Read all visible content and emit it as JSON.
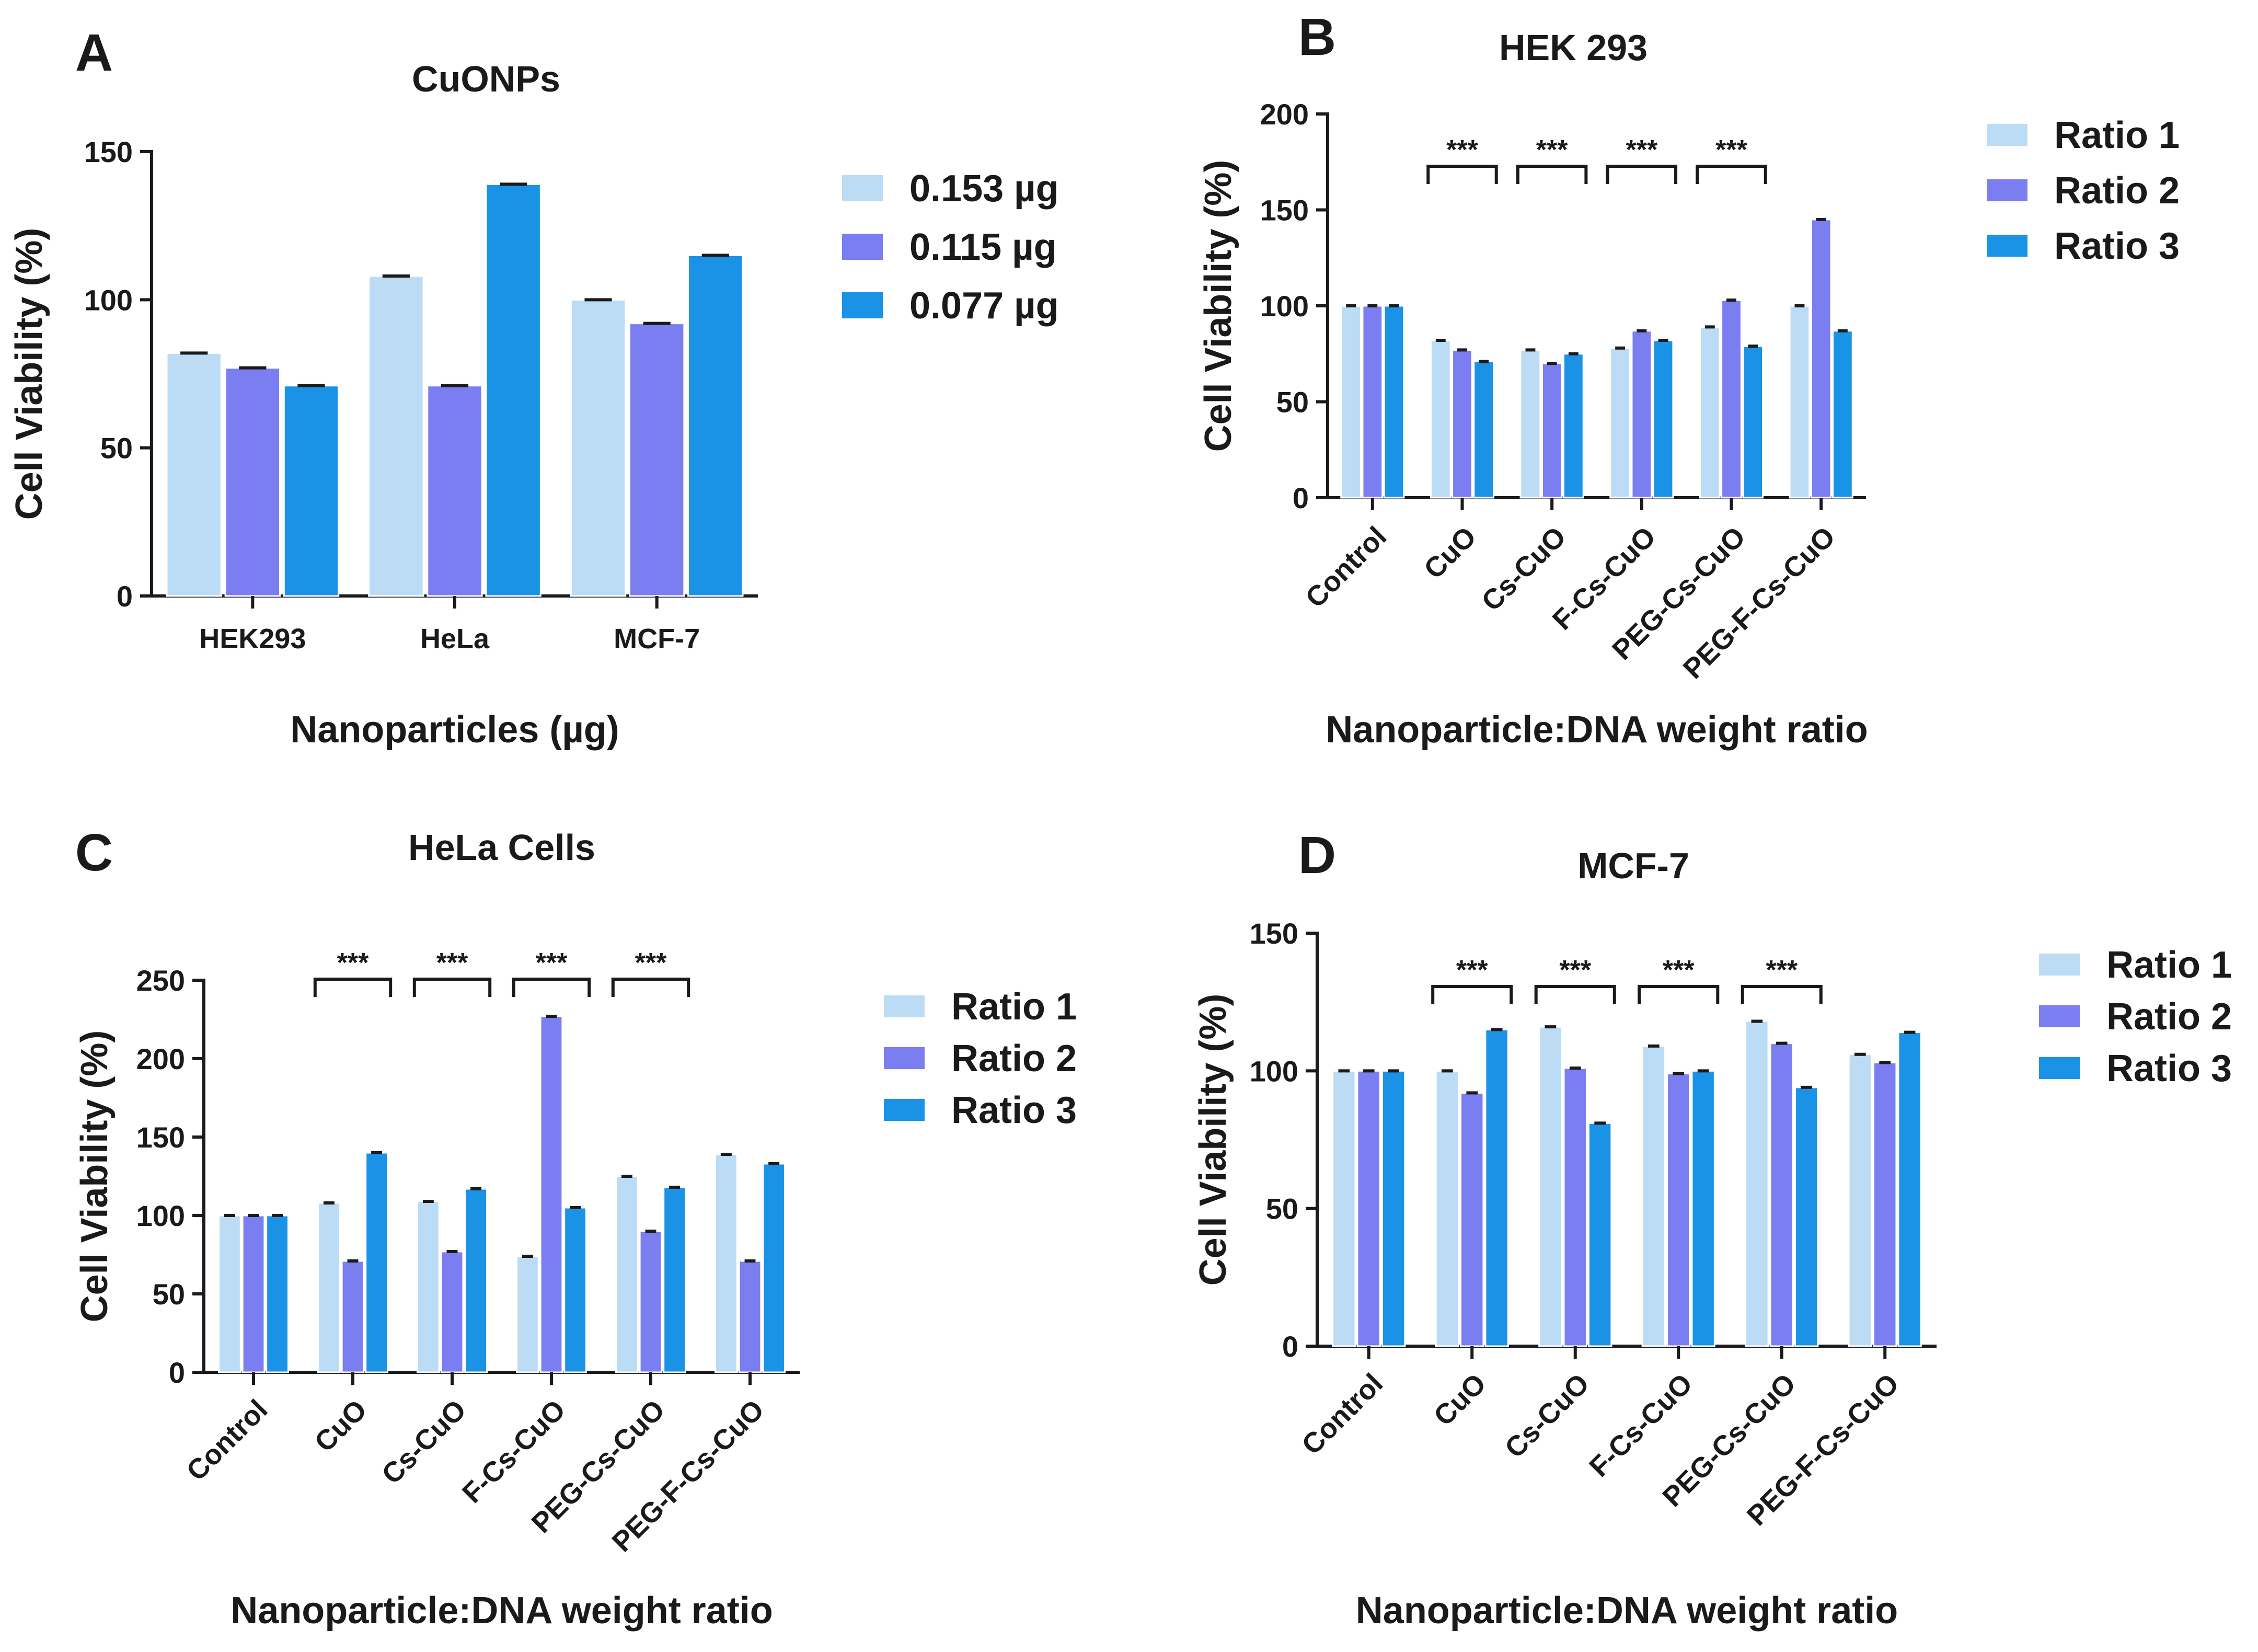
{
  "colors": {
    "series1": "#bcdcf6",
    "series2": "#7b7ef0",
    "series3": "#1a93e6",
    "axis": "#1a1a1a"
  },
  "chart_data": [
    {
      "id": "A",
      "panel": "A",
      "type": "bar",
      "title": "CuONPs",
      "xlabel": "Nanoparticles (µg)",
      "ylabel": "Cell Viability (%)",
      "ylim": [
        0,
        150
      ],
      "yticks": [
        "0",
        "50",
        "100",
        "150"
      ],
      "categories": [
        "HEK293",
        "HeLa",
        "MCF-7"
      ],
      "series": [
        {
          "name": "0.153 µg",
          "values": [
            82,
            108,
            100
          ]
        },
        {
          "name": "0.115 µg",
          "values": [
            77,
            71,
            92
          ]
        },
        {
          "name": "0.077 µg",
          "values": [
            71,
            139,
            115
          ]
        }
      ],
      "significance": []
    },
    {
      "id": "B",
      "panel": "B",
      "type": "bar",
      "title": "HEK 293",
      "xlabel": "Nanoparticle:DNA weight ratio",
      "ylabel": "Cell Viability (%)",
      "ylim": [
        0,
        200
      ],
      "yticks": [
        "0",
        "50",
        "100",
        "150",
        "200"
      ],
      "categories": [
        "Control",
        "CuO",
        "Cs-CuO",
        "F-Cs-CuO",
        "PEG-Cs-CuO",
        "PEG-F-Cs-CuO"
      ],
      "series": [
        {
          "name": "Ratio 1",
          "values": [
            100,
            82,
            77,
            78,
            89,
            100
          ]
        },
        {
          "name": "Ratio 2",
          "values": [
            100,
            77,
            70,
            87,
            103,
            145
          ]
        },
        {
          "name": "Ratio 3",
          "values": [
            100,
            71,
            75,
            82,
            79,
            87
          ]
        }
      ],
      "significance": [
        "***",
        "***",
        "***",
        "***"
      ]
    },
    {
      "id": "C",
      "panel": "C",
      "type": "bar",
      "title": "HeLa Cells",
      "xlabel": "Nanoparticle:DNA weight ratio",
      "ylabel": "Cell Viability (%)",
      "ylim": [
        0,
        250
      ],
      "yticks": [
        "0",
        "50",
        "100",
        "150",
        "200",
        "250"
      ],
      "categories": [
        "Control",
        "CuO",
        "Cs-CuO",
        "F-Cs-CuO",
        "PEG-Cs-CuO",
        "PEG-F-Cs-CuO"
      ],
      "series": [
        {
          "name": "Ratio 1",
          "values": [
            100,
            108,
            109,
            74,
            125,
            139
          ]
        },
        {
          "name": "Ratio 2",
          "values": [
            100,
            71,
            77,
            227,
            90,
            71
          ]
        },
        {
          "name": "Ratio 3",
          "values": [
            100,
            140,
            117,
            105,
            118,
            133
          ]
        }
      ],
      "significance": [
        "***",
        "***",
        "***",
        "***"
      ]
    },
    {
      "id": "D",
      "panel": "D",
      "type": "bar",
      "title": "MCF-7",
      "xlabel": "Nanoparticle:DNA weight ratio",
      "ylabel": "Cell Viability (%)",
      "ylim": [
        0,
        150
      ],
      "yticks": [
        "0",
        "50",
        "100",
        "150"
      ],
      "categories": [
        "Control",
        "CuO",
        "Cs-CuO",
        "F-Cs-CuO",
        "PEG-Cs-CuO",
        "PEG-F-Cs-CuO"
      ],
      "series": [
        {
          "name": "Ratio 1",
          "values": [
            100,
            100,
            116,
            109,
            118,
            106
          ]
        },
        {
          "name": "Ratio 2",
          "values": [
            100,
            92,
            101,
            99,
            110,
            103
          ]
        },
        {
          "name": "Ratio 3",
          "values": [
            100,
            115,
            81,
            100,
            94,
            114
          ]
        }
      ],
      "significance": [
        "***",
        "***",
        "***",
        "***"
      ]
    }
  ]
}
